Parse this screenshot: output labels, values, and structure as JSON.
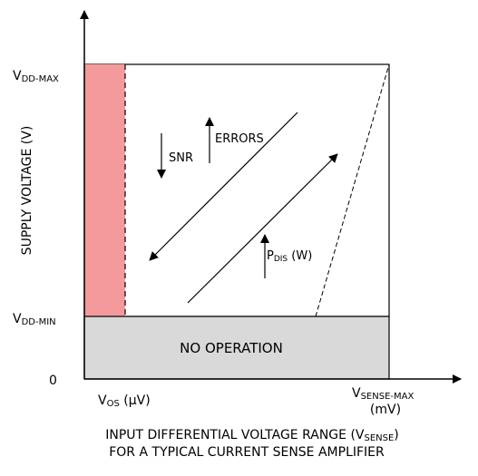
{
  "axes": {
    "y_label": "SUPPLY VOLTAGE (V)",
    "x_caption_line1_main": "INPUT DIFFERENTIAL VOLTAGE RANGE (V",
    "x_caption_line1_sub": "SENSE",
    "x_caption_line1_end": ")",
    "x_caption_line2": "FOR A TYPICAL CURRENT SENSE AMPLIFIER"
  },
  "y_ticks": {
    "vdd_max_main": "V",
    "vdd_max_sub": "DD-MAX",
    "vdd_min_main": "V",
    "vdd_min_sub": "DD-MIN",
    "zero": "0"
  },
  "x_ticks": {
    "vos_main": "V",
    "vos_sub": "OS",
    "vos_unit": " (µV)",
    "vsense_main": "V",
    "vsense_sub": "SENSE-MAX",
    "vsense_unit": "(mV)"
  },
  "regions": {
    "no_operation": "NO OPERATION"
  },
  "annotations": {
    "snr": "SNR",
    "errors": "ERRORS",
    "pdis_main": "P",
    "pdis_sub": "DIS",
    "pdis_unit": " (W)"
  },
  "colors": {
    "offset_region": "#f4999c",
    "no_operation_region": "#d9d9d9",
    "line": "#000000"
  }
}
